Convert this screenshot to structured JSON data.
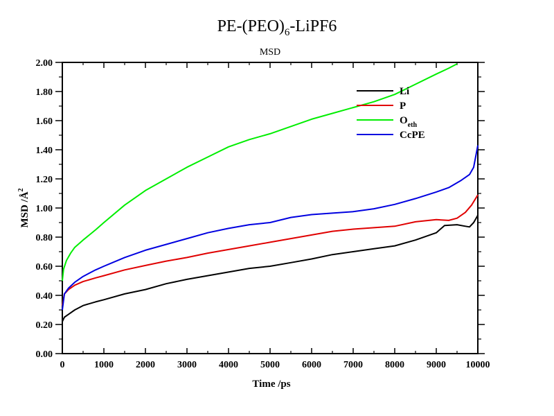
{
  "chart_data": {
    "type": "line",
    "title": "PE-(PEO)",
    "title_sub": "6",
    "title_tail": "-LiPF6",
    "subtitle": "MSD",
    "xlabel": "Time /ps",
    "ylabel_main": "MSD /Å",
    "ylabel_sup": "2",
    "xlim": [
      0,
      10000
    ],
    "ylim": [
      0,
      2.0
    ],
    "x_ticks": [
      0,
      1000,
      2000,
      3000,
      4000,
      5000,
      6000,
      7000,
      8000,
      9000,
      10000
    ],
    "x_tick_labels": [
      "0",
      "1000",
      "2000",
      "3000",
      "4000",
      "5000",
      "6000",
      "7000",
      "8000",
      "9000",
      "10000"
    ],
    "y_ticks": [
      0,
      0.2,
      0.4,
      0.6,
      0.8,
      1.0,
      1.2,
      1.4,
      1.6,
      1.8,
      2.0
    ],
    "y_tick_labels": [
      "0.00",
      "0.20",
      "0.40",
      "0.60",
      "0.80",
      "1.00",
      "1.20",
      "1.40",
      "1.60",
      "1.80",
      "2.00"
    ],
    "grid": false,
    "legend_position": "top-right",
    "series": [
      {
        "name": "Li",
        "name_sub": "",
        "color": "#000000",
        "x": [
          0,
          50,
          150,
          300,
          500,
          800,
          1000,
          1500,
          2000,
          2500,
          3000,
          3500,
          4000,
          4500,
          5000,
          5500,
          6000,
          6500,
          7000,
          7500,
          8000,
          8500,
          9000,
          9200,
          9500,
          9700,
          9800,
          9900,
          10000
        ],
        "y": [
          0.22,
          0.25,
          0.27,
          0.3,
          0.33,
          0.355,
          0.37,
          0.41,
          0.44,
          0.48,
          0.51,
          0.535,
          0.56,
          0.585,
          0.6,
          0.625,
          0.65,
          0.68,
          0.7,
          0.72,
          0.74,
          0.78,
          0.83,
          0.88,
          0.885,
          0.875,
          0.87,
          0.9,
          0.95
        ]
      },
      {
        "name": "P",
        "name_sub": "",
        "color": "#e00000",
        "x": [
          0,
          50,
          150,
          300,
          500,
          800,
          1000,
          1500,
          2000,
          2500,
          3000,
          3500,
          4000,
          4500,
          5000,
          5500,
          6000,
          6500,
          7000,
          7500,
          8000,
          8500,
          9000,
          9300,
          9500,
          9700,
          9850,
          10000
        ],
        "y": [
          0.33,
          0.41,
          0.44,
          0.47,
          0.495,
          0.52,
          0.535,
          0.575,
          0.605,
          0.635,
          0.66,
          0.69,
          0.715,
          0.74,
          0.765,
          0.79,
          0.815,
          0.84,
          0.855,
          0.865,
          0.875,
          0.905,
          0.92,
          0.915,
          0.93,
          0.97,
          1.02,
          1.09
        ]
      },
      {
        "name": "O",
        "name_sub": "eth",
        "color": "#00ee00",
        "x": [
          0,
          30,
          100,
          200,
          300,
          500,
          800,
          1000,
          1500,
          2000,
          2500,
          3000,
          3500,
          4000,
          4500,
          5000,
          5500,
          6000,
          6500,
          7000,
          7500,
          8000,
          8500,
          9000,
          9300,
          9500
        ],
        "y": [
          0.5,
          0.58,
          0.64,
          0.69,
          0.73,
          0.78,
          0.85,
          0.9,
          1.02,
          1.12,
          1.2,
          1.28,
          1.35,
          1.42,
          1.47,
          1.51,
          1.56,
          1.61,
          1.65,
          1.69,
          1.73,
          1.78,
          1.85,
          1.92,
          1.96,
          1.99
        ]
      },
      {
        "name": "CcPE",
        "name_sub": "",
        "color": "#0000e0",
        "x": [
          0,
          50,
          150,
          300,
          500,
          800,
          1000,
          1500,
          2000,
          2500,
          3000,
          3500,
          4000,
          4500,
          5000,
          5500,
          6000,
          6500,
          7000,
          7500,
          8000,
          8500,
          9000,
          9300,
          9600,
          9800,
          9900,
          10000
        ],
        "y": [
          0.3,
          0.41,
          0.45,
          0.49,
          0.53,
          0.575,
          0.6,
          0.66,
          0.71,
          0.75,
          0.79,
          0.83,
          0.86,
          0.885,
          0.9,
          0.935,
          0.955,
          0.965,
          0.975,
          0.995,
          1.025,
          1.065,
          1.11,
          1.14,
          1.19,
          1.23,
          1.28,
          1.43
        ]
      }
    ]
  }
}
